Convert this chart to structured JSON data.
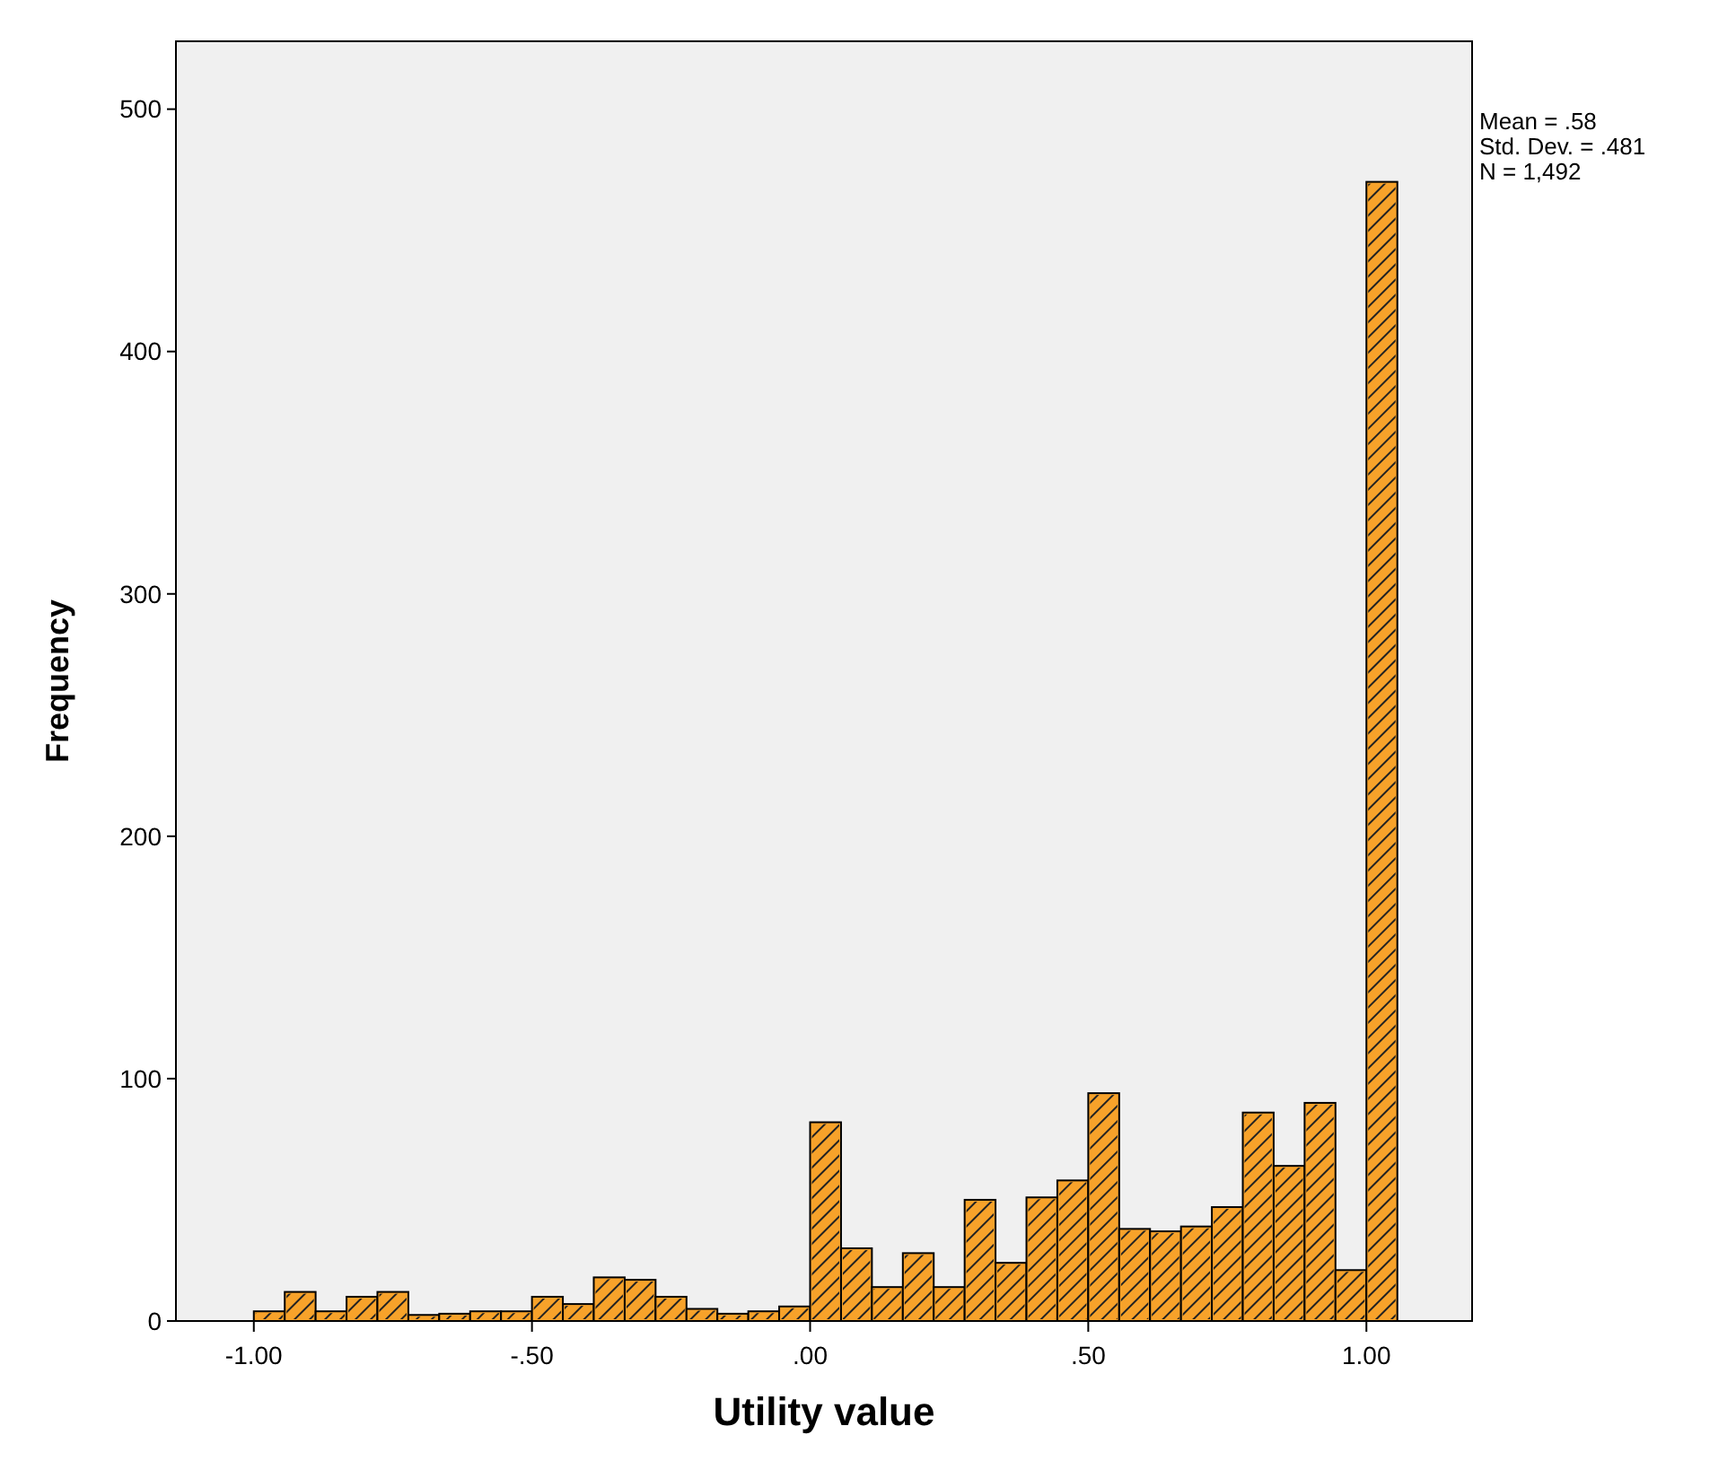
{
  "chart_data": {
    "type": "histogram",
    "xlabel": "Utility value",
    "ylabel": "Frequency",
    "annotations": [
      "Mean = .58",
      "Std. Dev. = .481",
      "N = 1,492"
    ],
    "bins": [
      -1,
      -0.9444,
      -0.8889,
      -0.8333,
      -0.7778,
      -0.7222,
      -0.6667,
      -0.6111,
      -0.5556,
      -0.5,
      -0.4444,
      -0.3889,
      -0.3333,
      -0.2778,
      -0.2222,
      -0.1667,
      -0.1111,
      -0.0556,
      0,
      0.0556,
      0.1111,
      0.1667,
      0.2222,
      0.2778,
      0.3333,
      0.3889,
      0.4444,
      0.5,
      0.5556,
      0.6111,
      0.6667,
      0.7222,
      0.7778,
      0.8333,
      0.8889,
      0.9444,
      1,
      1.0556
    ],
    "values": [
      4,
      12,
      4,
      10,
      12,
      2.5,
      3,
      4,
      4,
      10,
      7,
      18,
      17,
      10,
      5,
      3,
      4,
      6,
      82,
      30,
      14,
      28,
      14,
      50,
      24,
      51,
      58,
      94,
      38,
      37,
      39,
      47,
      86,
      64,
      90,
      21,
      470
    ],
    "color": "#f7a22a",
    "xlim": [
      -1.14,
      1.19
    ],
    "ylim": [
      0,
      528
    ],
    "xticks": [
      {
        "value": -1,
        "label": "-1.00"
      },
      {
        "value": -0.5,
        "label": "-.50"
      },
      {
        "value": 0,
        "label": ".00"
      },
      {
        "value": 0.5,
        "label": ".50"
      },
      {
        "value": 1,
        "label": "1.00"
      }
    ],
    "yticks": [
      0,
      100,
      200,
      300,
      400,
      500
    ],
    "grid": false
  }
}
